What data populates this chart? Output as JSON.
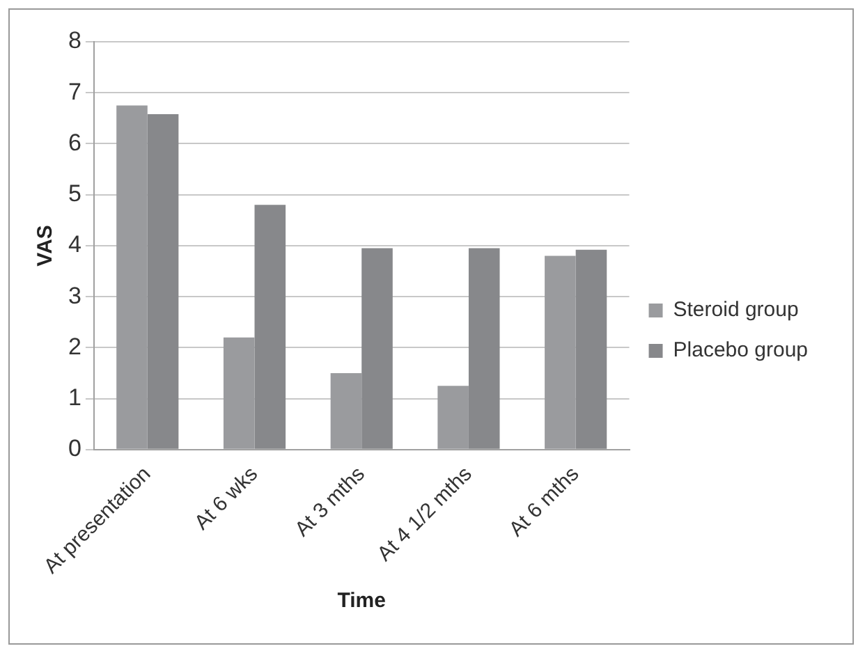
{
  "chart_data": {
    "type": "bar",
    "xlabel": "Time",
    "ylabel": "VAS",
    "categories": [
      "At presentation",
      "At 6 wks",
      "At 3 mths",
      "At 4 1/2 mths",
      "At 6 mths"
    ],
    "series": [
      {
        "name": "Steroid group",
        "color": "#9a9b9e",
        "values": [
          6.75,
          2.2,
          1.5,
          1.25,
          3.8
        ]
      },
      {
        "name": "Placebo group",
        "color": "#87888b",
        "values": [
          6.58,
          4.8,
          3.95,
          3.95,
          3.92
        ]
      }
    ],
    "ylim": [
      0,
      8
    ],
    "yticks": [
      0,
      1,
      2,
      3,
      4,
      5,
      6,
      7,
      8
    ],
    "grid": "y",
    "legend": "right"
  }
}
